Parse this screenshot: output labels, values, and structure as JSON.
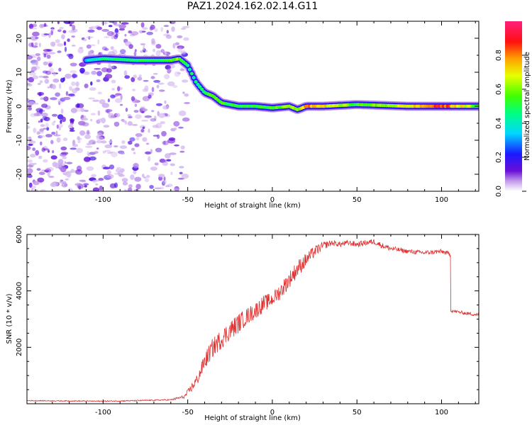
{
  "title": "PAZ1.2024.162.02.14.G11",
  "colors": {
    "snr_line": "#e03030",
    "axis": "#000000"
  },
  "chart_data": [
    {
      "type": "heatmap",
      "title": "PAZ1.2024.162.02.14.G11",
      "xlabel": "Height of straight line (km)",
      "ylabel": "Frequency (Hz)",
      "xlim": [
        -145,
        122
      ],
      "ylim": [
        -25,
        25
      ],
      "xticks": [
        -100,
        -50,
        0,
        50,
        100
      ],
      "yticks": [
        -20,
        -10,
        0,
        10,
        20
      ],
      "colormap": "rainbow (purple to red)",
      "colorbar": {
        "label": "Normalized spectral amplitude",
        "ticks": [
          0.0,
          0.2,
          0.4,
          0.6,
          0.8
        ],
        "range": [
          0,
          1
        ]
      },
      "ridge": {
        "description": "dominant frequency ridge",
        "x": [
          -110,
          -100,
          -80,
          -60,
          -55,
          -50,
          -45,
          -40,
          -35,
          -30,
          -20,
          -10,
          0,
          10,
          15,
          20,
          30,
          50,
          80,
          100,
          122
        ],
        "y": [
          13.5,
          14,
          13.5,
          13.5,
          14,
          12,
          7,
          4,
          3,
          1,
          0,
          0,
          -0.5,
          0,
          -1,
          0,
          0,
          0.5,
          0,
          0,
          0
        ],
        "amplitude": [
          0.35,
          0.45,
          0.5,
          0.55,
          0.6,
          0.5,
          0.45,
          0.5,
          0.6,
          0.55,
          0.55,
          0.5,
          0.55,
          0.65,
          0.6,
          0.8,
          0.75,
          0.55,
          0.7,
          0.9,
          0.55
        ]
      },
      "noise_region_x": [
        -145,
        -52
      ]
    },
    {
      "type": "line",
      "xlabel": "Height of straight line (km)",
      "ylabel": "SNR (10 * v/v)",
      "xlim": [
        -145,
        122
      ],
      "ylim": [
        0,
        6000
      ],
      "xticks": [
        -100,
        -50,
        0,
        50,
        100
      ],
      "yticks": [
        2000,
        4000,
        6000
      ],
      "series": [
        {
          "color": "#e03030",
          "x": [
            -145,
            -120,
            -100,
            -80,
            -60,
            -52,
            -48,
            -44,
            -40,
            -35,
            -30,
            -25,
            -20,
            -15,
            -10,
            -5,
            0,
            5,
            10,
            15,
            20,
            25,
            30,
            35,
            40,
            45,
            50,
            55,
            60,
            65,
            70,
            75,
            80,
            90,
            100,
            105,
            105.5,
            110,
            115,
            122
          ],
          "y": [
            110,
            100,
            90,
            110,
            140,
            250,
            550,
            900,
            1500,
            2000,
            2300,
            2600,
            2850,
            3100,
            3300,
            3550,
            3700,
            4000,
            4400,
            4800,
            5100,
            5400,
            5600,
            5700,
            5650,
            5700,
            5650,
            5700,
            5750,
            5600,
            5500,
            5450,
            5400,
            5350,
            5400,
            5300,
            3300,
            3250,
            3200,
            3150
          ],
          "noise": [
            15,
            15,
            20,
            20,
            25,
            60,
            150,
            200,
            300,
            350,
            350,
            350,
            350,
            300,
            300,
            300,
            250,
            300,
            300,
            300,
            250,
            200,
            150,
            100,
            100,
            100,
            100,
            100,
            100,
            100,
            100,
            80,
            80,
            80,
            80,
            80,
            60,
            60,
            60,
            60
          ]
        }
      ]
    }
  ]
}
